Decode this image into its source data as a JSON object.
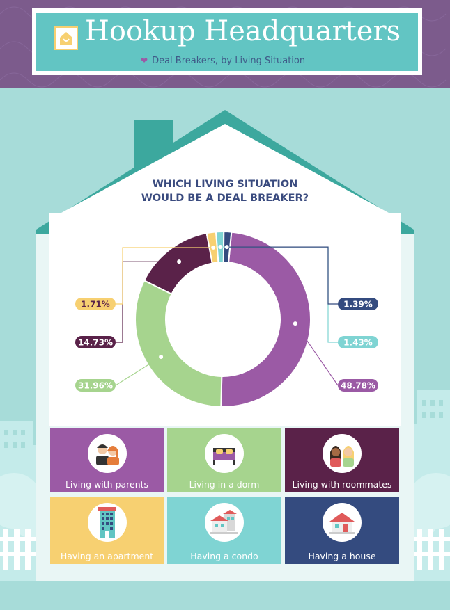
{
  "header": {
    "title": "Hookup Headquarters",
    "subtitle": "Deal Breakers, by Living Situation"
  },
  "question": {
    "line1": "WHICH LIVING SITUATION",
    "line2": "WOULD BE A DEAL BREAKER?"
  },
  "chart_data": {
    "type": "pie",
    "donut": true,
    "categories": [
      "Living with parents",
      "Living in a dorm",
      "Living with roommates",
      "Having an apartment",
      "Having a condo",
      "Having a house"
    ],
    "values": [
      48.78,
      31.96,
      14.73,
      1.71,
      1.43,
      1.39
    ],
    "labels": [
      "48.78%",
      "31.96%",
      "14.73%",
      "1.71%",
      "1.43%",
      "1.39%"
    ],
    "colors": [
      "#9b5aa5",
      "#a6d48e",
      "#5a2249",
      "#f7d071",
      "#7fd4d3",
      "#344b7f"
    ]
  },
  "tiles": [
    {
      "label": "Living with parents",
      "color": "#9b5aa5",
      "icon": "parents-icon"
    },
    {
      "label": "Living in a dorm",
      "color": "#a6d48e",
      "icon": "bed-icon"
    },
    {
      "label": "Living with roommates",
      "color": "#5a2249",
      "icon": "roommates-icon"
    },
    {
      "label": "Having an apartment",
      "color": "#f7d071",
      "icon": "apartment-building-icon"
    },
    {
      "label": "Having a condo",
      "color": "#7fd4d3",
      "icon": "condo-icon"
    },
    {
      "label": "Having a house",
      "color": "#344b7f",
      "icon": "house-icon"
    }
  ]
}
